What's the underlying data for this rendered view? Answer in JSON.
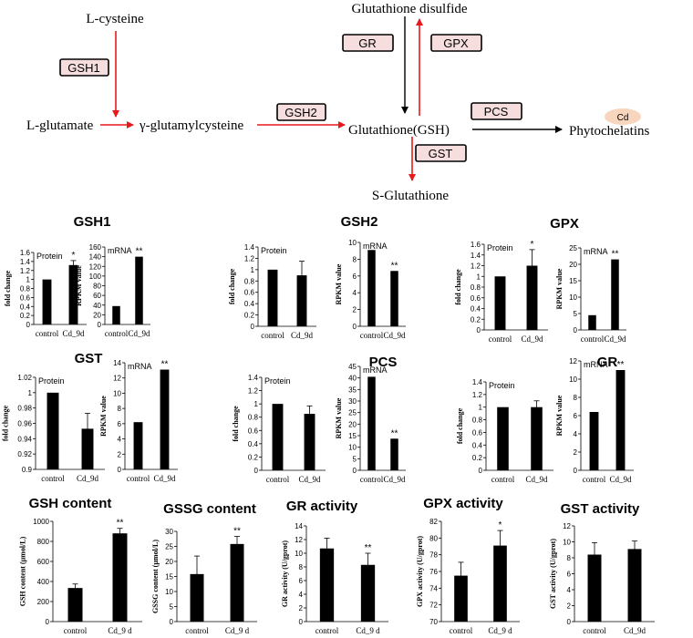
{
  "pathway": {
    "l_cysteine": "L-cysteine",
    "l_glutamate": "L-glutamate",
    "gamma_glutamylcysteine": "γ-glutamylcysteine",
    "glutathione": "Glutathione(GSH)",
    "glutathione_disulfide": "Glutathione disulfide",
    "s_glutathione": "S-Glutathione",
    "phytochelatins": "Phytochelatins",
    "cd": "Cd",
    "enzymes": {
      "gsh1": "GSH1",
      "gsh2": "GSH2",
      "gr": "GR",
      "gpx": "GPX",
      "pcs": "PCS",
      "gst": "GST"
    },
    "colors": {
      "red_arrow": "#e8181b",
      "black_arrow": "#000000",
      "enzyme_box": "#f6dede",
      "cd_ellipse": "#f8d6bd"
    }
  },
  "chart_data": [
    {
      "type": "bar",
      "group_title": "GSH1",
      "title": "Protein",
      "ylabel": "fold change",
      "categories": [
        "control",
        "Cd_9d"
      ],
      "values": [
        1.0,
        1.32
      ],
      "errors": [
        0,
        0.1
      ],
      "ylim": [
        0,
        1.6
      ],
      "ticks": [
        0,
        0.2,
        0.4,
        0.6,
        0.8,
        1,
        1.2,
        1.4,
        1.6
      ],
      "significance": [
        "",
        "*"
      ]
    },
    {
      "type": "bar",
      "group_title": "",
      "title": "mRNA",
      "ylabel": "RPKM value",
      "categories": [
        "control",
        "Cd_9d"
      ],
      "values": [
        38,
        140
      ],
      "errors": [
        0,
        0
      ],
      "ylim": [
        0,
        160
      ],
      "ticks": [
        0,
        20,
        40,
        60,
        80,
        100,
        120,
        140,
        160
      ],
      "significance": [
        "",
        "**"
      ]
    },
    {
      "type": "bar",
      "group_title": "GSH2",
      "title": "Protein",
      "ylabel": "fold change",
      "categories": [
        "control",
        "Cd_9d"
      ],
      "values": [
        1.0,
        0.9
      ],
      "errors": [
        0,
        0.25
      ],
      "ylim": [
        0,
        1.4
      ],
      "ticks": [
        0,
        0.2,
        0.4,
        0.6,
        0.8,
        1,
        1.2,
        1.4
      ],
      "significance": [
        "",
        ""
      ]
    },
    {
      "type": "bar",
      "group_title": "",
      "title": "mRNA",
      "ylabel": "RPKM value",
      "categories": [
        "control",
        "Cd_9d"
      ],
      "values": [
        9.1,
        6.6
      ],
      "errors": [
        0,
        0
      ],
      "ylim": [
        0,
        10
      ],
      "ticks": [
        0,
        2,
        4,
        6,
        8,
        10
      ],
      "significance": [
        "",
        "**"
      ]
    },
    {
      "type": "bar",
      "group_title": "GPX",
      "title": "Protein",
      "ylabel": "fold change",
      "categories": [
        "control",
        "Cd_9d"
      ],
      "values": [
        1.0,
        1.2
      ],
      "errors": [
        0,
        0.3
      ],
      "ylim": [
        0,
        1.6
      ],
      "ticks": [
        0,
        0.2,
        0.4,
        0.6,
        0.8,
        1,
        1.2,
        1.4,
        1.6
      ],
      "significance": [
        "",
        "*"
      ]
    },
    {
      "type": "bar",
      "group_title": "",
      "title": "mRNA",
      "ylabel": "RPKM value",
      "categories": [
        "control",
        "Cd_9d"
      ],
      "values": [
        4.5,
        21.5
      ],
      "errors": [
        0,
        0
      ],
      "ylim": [
        0,
        25
      ],
      "ticks": [
        0,
        5,
        10,
        15,
        20,
        25
      ],
      "significance": [
        "",
        "**"
      ]
    },
    {
      "type": "bar",
      "group_title": "GST",
      "title": "Protein",
      "ylabel": "fold change",
      "categories": [
        "control",
        "Cd_9d"
      ],
      "values": [
        1.0,
        0.953
      ],
      "errors": [
        0,
        0.02
      ],
      "ylim": [
        0.9,
        1.02
      ],
      "ticks": [
        0.9,
        0.92,
        0.94,
        0.96,
        0.98,
        1,
        1.02
      ],
      "significance": [
        "",
        ""
      ]
    },
    {
      "type": "bar",
      "group_title": "",
      "title": "mRNA",
      "ylabel": "RPKM value",
      "categories": [
        "control",
        "Cd_9d"
      ],
      "values": [
        6.2,
        13.1
      ],
      "errors": [
        0,
        0
      ],
      "ylim": [
        0,
        14
      ],
      "ticks": [
        0,
        2,
        4,
        6,
        8,
        10,
        12,
        14
      ],
      "significance": [
        "",
        "**"
      ]
    },
    {
      "type": "bar",
      "group_title": "PCS",
      "title": "Protein",
      "ylabel": "fold change",
      "categories": [
        "control",
        "Cd_9d"
      ],
      "values": [
        1.0,
        0.85
      ],
      "errors": [
        0,
        0.12
      ],
      "ylim": [
        0,
        1.4
      ],
      "ticks": [
        0,
        0.2,
        0.4,
        0.6,
        0.8,
        1,
        1.2,
        1.4
      ],
      "significance": [
        "",
        ""
      ]
    },
    {
      "type": "bar",
      "group_title": "",
      "title": "mRNA",
      "ylabel": "RPKM value",
      "categories": [
        "control",
        "Cd_9d"
      ],
      "values": [
        40.5,
        13.7
      ],
      "errors": [
        0,
        0
      ],
      "ylim": [
        0,
        45
      ],
      "ticks": [
        0,
        5,
        10,
        15,
        20,
        25,
        30,
        35,
        40,
        45
      ],
      "significance": [
        "",
        "**"
      ]
    },
    {
      "type": "bar",
      "group_title": "GR",
      "title": "Protein",
      "ylabel": "fold change",
      "categories": [
        "control",
        "Cd_9d"
      ],
      "values": [
        1.0,
        1.0
      ],
      "errors": [
        0,
        0.1
      ],
      "ylim": [
        0,
        1.4
      ],
      "ticks": [
        0,
        0.2,
        0.4,
        0.6,
        0.8,
        1,
        1.2,
        1.4
      ],
      "significance": [
        "",
        ""
      ]
    },
    {
      "type": "bar",
      "group_title": "",
      "title": "mRNA",
      "ylabel": "RPKM value",
      "categories": [
        "control",
        "Cd_9d"
      ],
      "values": [
        6.4,
        11.0
      ],
      "errors": [
        0,
        0
      ],
      "ylim": [
        0,
        12
      ],
      "ticks": [
        0,
        2,
        4,
        6,
        8,
        10,
        12
      ],
      "significance": [
        "",
        "**"
      ]
    },
    {
      "type": "bar",
      "group_title": "GSH content",
      "title": "",
      "ylabel": "GSH content (μmol/L)",
      "categories": [
        "control",
        "Cd_9 d"
      ],
      "values": [
        335,
        880
      ],
      "errors": [
        40,
        50
      ],
      "ylim": [
        0,
        1000
      ],
      "ticks": [
        0,
        200,
        400,
        600,
        800,
        1000
      ],
      "significance": [
        "",
        "**"
      ]
    },
    {
      "type": "bar",
      "group_title": "GSSG content",
      "title": "",
      "ylabel": "GSSG content (μmol/L)",
      "categories": [
        "control",
        "Cd_9 d"
      ],
      "values": [
        15.8,
        25.8
      ],
      "errors": [
        6,
        2.5
      ],
      "ylim": [
        0,
        30
      ],
      "ticks": [
        0,
        5,
        10,
        15,
        20,
        25,
        30
      ],
      "significance": [
        "",
        "**"
      ]
    },
    {
      "type": "bar",
      "group_title": "GR activity",
      "title": "",
      "ylabel": "GR activity (U/gprot)",
      "categories": [
        "control",
        "Cd_9 d"
      ],
      "values": [
        10.7,
        8.3
      ],
      "errors": [
        1.5,
        1.7
      ],
      "ylim": [
        0,
        14
      ],
      "ticks": [
        0,
        2,
        4,
        6,
        8,
        10,
        12,
        14
      ],
      "significance": [
        "",
        "**"
      ]
    },
    {
      "type": "bar",
      "group_title": "GPX activity",
      "title": "",
      "ylabel": "GPX activity (U/gprot)",
      "categories": [
        "control",
        "Cd_9 d"
      ],
      "values": [
        75.5,
        79.1
      ],
      "errors": [
        1.6,
        1.8
      ],
      "ylim": [
        70,
        82
      ],
      "ticks": [
        70,
        72,
        74,
        76,
        78,
        80,
        82
      ],
      "significance": [
        "",
        "*"
      ]
    },
    {
      "type": "bar",
      "group_title": "GST activity",
      "title": "",
      "ylabel": "GST activity (U/gprot)",
      "categories": [
        "control",
        "Cd_9d"
      ],
      "values": [
        8.4,
        9.1
      ],
      "errors": [
        1.5,
        1.0
      ],
      "ylim": [
        0,
        12
      ],
      "ticks": [
        0,
        2,
        4,
        6,
        8,
        10,
        12
      ],
      "significance": [
        "",
        ""
      ]
    }
  ]
}
